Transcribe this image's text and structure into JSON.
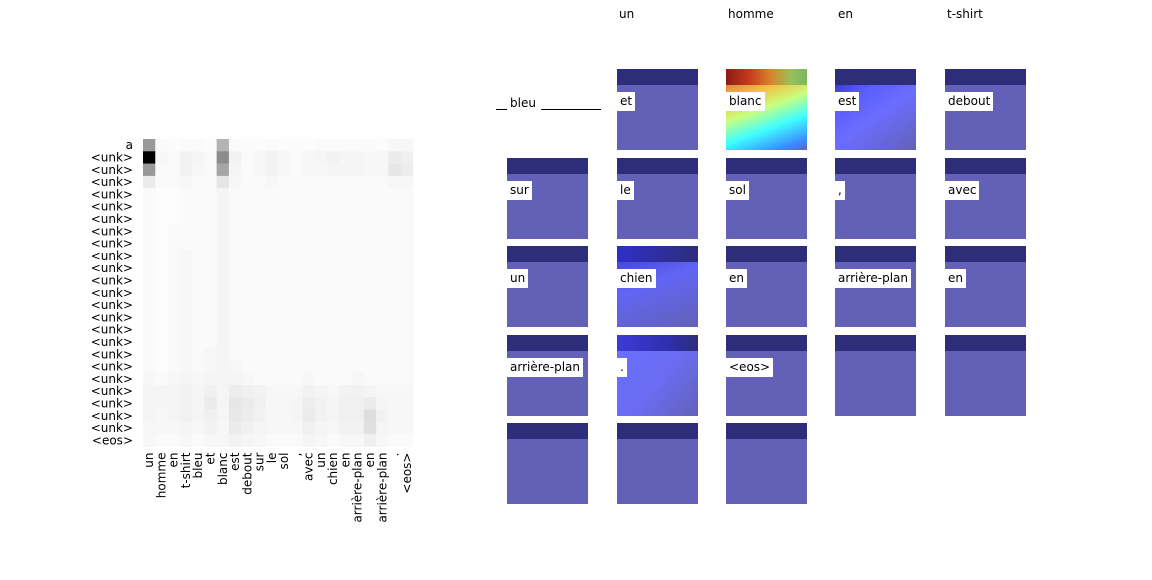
{
  "chart_data": [
    {
      "type": "heatmap",
      "y_labels": [
        "a",
        "<unk>",
        "<unk>",
        "<unk>",
        "<unk>",
        "<unk>",
        "<unk>",
        "<unk>",
        "<unk>",
        "<unk>",
        "<unk>",
        "<unk>",
        "<unk>",
        "<unk>",
        "<unk>",
        "<unk>",
        "<unk>",
        "<unk>",
        "<unk>",
        "<unk>",
        "<unk>",
        "<unk>",
        "<unk>",
        "<unk>",
        "<eos>"
      ],
      "x_labels": [
        "un",
        "homme",
        "en",
        "t-shirt",
        "bleu",
        "et",
        "blanc",
        "est",
        "debout",
        "sur",
        "le",
        "sol",
        ",",
        "avec",
        "un",
        "chien",
        "en",
        "arrière-plan",
        "en",
        "arrière-plan",
        ".",
        "<eos>"
      ],
      "values": [
        [
          0.4,
          0.02,
          0.01,
          0.02,
          0.02,
          0.01,
          0.3,
          0.02,
          0.01,
          0.01,
          0.02,
          0.01,
          0.01,
          0.01,
          0.02,
          0.02,
          0.02,
          0.02,
          0.02,
          0.01,
          0.03,
          0.03
        ],
        [
          1.0,
          0.03,
          0.02,
          0.05,
          0.04,
          0.02,
          0.45,
          0.05,
          0.02,
          0.03,
          0.05,
          0.03,
          0.02,
          0.03,
          0.04,
          0.05,
          0.04,
          0.04,
          0.03,
          0.03,
          0.08,
          0.06
        ],
        [
          0.4,
          0.02,
          0.02,
          0.05,
          0.03,
          0.02,
          0.35,
          0.04,
          0.02,
          0.03,
          0.05,
          0.03,
          0.02,
          0.03,
          0.03,
          0.04,
          0.04,
          0.04,
          0.03,
          0.03,
          0.1,
          0.07
        ],
        [
          0.08,
          0.02,
          0.02,
          0.03,
          0.02,
          0.02,
          0.1,
          0.03,
          0.02,
          0.02,
          0.03,
          0.02,
          0.02,
          0.02,
          0.02,
          0.02,
          0.02,
          0.02,
          0.02,
          0.02,
          0.03,
          0.03
        ],
        [
          0.02,
          0.01,
          0.01,
          0.02,
          0.02,
          0.02,
          0.04,
          0.02,
          0.02,
          0.02,
          0.02,
          0.02,
          0.02,
          0.02,
          0.02,
          0.02,
          0.02,
          0.02,
          0.02,
          0.02,
          0.02,
          0.02
        ],
        [
          0.02,
          0.01,
          0.01,
          0.02,
          0.02,
          0.02,
          0.04,
          0.02,
          0.02,
          0.02,
          0.02,
          0.02,
          0.02,
          0.02,
          0.02,
          0.02,
          0.02,
          0.02,
          0.02,
          0.02,
          0.02,
          0.02
        ],
        [
          0.02,
          0.01,
          0.01,
          0.02,
          0.02,
          0.02,
          0.04,
          0.02,
          0.02,
          0.02,
          0.02,
          0.02,
          0.02,
          0.02,
          0.02,
          0.02,
          0.02,
          0.02,
          0.02,
          0.02,
          0.02,
          0.02
        ],
        [
          0.02,
          0.01,
          0.02,
          0.02,
          0.02,
          0.02,
          0.04,
          0.02,
          0.02,
          0.02,
          0.02,
          0.02,
          0.02,
          0.02,
          0.02,
          0.02,
          0.02,
          0.02,
          0.02,
          0.02,
          0.02,
          0.02
        ],
        [
          0.02,
          0.01,
          0.02,
          0.02,
          0.02,
          0.02,
          0.04,
          0.02,
          0.02,
          0.02,
          0.02,
          0.02,
          0.02,
          0.02,
          0.02,
          0.02,
          0.02,
          0.02,
          0.02,
          0.02,
          0.02,
          0.02
        ],
        [
          0.02,
          0.01,
          0.02,
          0.03,
          0.02,
          0.02,
          0.04,
          0.02,
          0.02,
          0.02,
          0.02,
          0.02,
          0.02,
          0.02,
          0.02,
          0.02,
          0.02,
          0.02,
          0.02,
          0.02,
          0.02,
          0.02
        ],
        [
          0.02,
          0.01,
          0.02,
          0.03,
          0.02,
          0.02,
          0.04,
          0.02,
          0.02,
          0.02,
          0.02,
          0.02,
          0.02,
          0.02,
          0.02,
          0.02,
          0.02,
          0.02,
          0.02,
          0.02,
          0.02,
          0.02
        ],
        [
          0.02,
          0.01,
          0.02,
          0.03,
          0.02,
          0.02,
          0.04,
          0.02,
          0.02,
          0.02,
          0.02,
          0.02,
          0.02,
          0.02,
          0.02,
          0.02,
          0.02,
          0.02,
          0.02,
          0.02,
          0.02,
          0.02
        ],
        [
          0.02,
          0.01,
          0.02,
          0.03,
          0.02,
          0.02,
          0.04,
          0.02,
          0.02,
          0.02,
          0.02,
          0.02,
          0.02,
          0.02,
          0.02,
          0.02,
          0.02,
          0.02,
          0.02,
          0.02,
          0.02,
          0.02
        ],
        [
          0.02,
          0.01,
          0.02,
          0.03,
          0.02,
          0.02,
          0.04,
          0.02,
          0.02,
          0.02,
          0.02,
          0.02,
          0.02,
          0.02,
          0.02,
          0.02,
          0.02,
          0.02,
          0.02,
          0.02,
          0.02,
          0.02
        ],
        [
          0.02,
          0.01,
          0.02,
          0.03,
          0.02,
          0.02,
          0.04,
          0.02,
          0.02,
          0.02,
          0.02,
          0.02,
          0.02,
          0.02,
          0.02,
          0.02,
          0.02,
          0.02,
          0.02,
          0.02,
          0.02,
          0.02
        ],
        [
          0.02,
          0.01,
          0.02,
          0.03,
          0.02,
          0.02,
          0.04,
          0.02,
          0.02,
          0.02,
          0.02,
          0.02,
          0.02,
          0.02,
          0.02,
          0.02,
          0.02,
          0.02,
          0.02,
          0.02,
          0.02,
          0.02
        ],
        [
          0.02,
          0.01,
          0.02,
          0.03,
          0.02,
          0.02,
          0.04,
          0.02,
          0.02,
          0.02,
          0.02,
          0.02,
          0.02,
          0.02,
          0.02,
          0.02,
          0.02,
          0.02,
          0.02,
          0.02,
          0.02,
          0.02
        ],
        [
          0.02,
          0.01,
          0.02,
          0.03,
          0.02,
          0.03,
          0.04,
          0.02,
          0.02,
          0.02,
          0.02,
          0.02,
          0.02,
          0.02,
          0.02,
          0.02,
          0.02,
          0.02,
          0.02,
          0.02,
          0.02,
          0.02
        ],
        [
          0.02,
          0.01,
          0.02,
          0.03,
          0.02,
          0.03,
          0.04,
          0.03,
          0.02,
          0.02,
          0.02,
          0.02,
          0.02,
          0.02,
          0.02,
          0.02,
          0.02,
          0.02,
          0.02,
          0.02,
          0.02,
          0.02
        ],
        [
          0.03,
          0.02,
          0.03,
          0.04,
          0.03,
          0.04,
          0.04,
          0.04,
          0.03,
          0.02,
          0.02,
          0.02,
          0.02,
          0.03,
          0.02,
          0.02,
          0.02,
          0.03,
          0.02,
          0.02,
          0.02,
          0.02
        ],
        [
          0.04,
          0.04,
          0.04,
          0.05,
          0.04,
          0.06,
          0.04,
          0.07,
          0.06,
          0.05,
          0.03,
          0.03,
          0.03,
          0.05,
          0.04,
          0.03,
          0.05,
          0.05,
          0.04,
          0.03,
          0.03,
          0.03
        ],
        [
          0.04,
          0.04,
          0.04,
          0.05,
          0.04,
          0.08,
          0.04,
          0.1,
          0.08,
          0.06,
          0.03,
          0.03,
          0.04,
          0.07,
          0.05,
          0.04,
          0.06,
          0.06,
          0.08,
          0.04,
          0.03,
          0.03
        ],
        [
          0.04,
          0.03,
          0.04,
          0.05,
          0.04,
          0.06,
          0.04,
          0.09,
          0.07,
          0.05,
          0.03,
          0.03,
          0.04,
          0.08,
          0.05,
          0.04,
          0.06,
          0.06,
          0.13,
          0.05,
          0.03,
          0.03
        ],
        [
          0.03,
          0.03,
          0.03,
          0.04,
          0.03,
          0.05,
          0.03,
          0.08,
          0.06,
          0.04,
          0.03,
          0.03,
          0.03,
          0.06,
          0.04,
          0.03,
          0.05,
          0.05,
          0.12,
          0.04,
          0.03,
          0.03
        ],
        [
          0.03,
          0.02,
          0.02,
          0.03,
          0.02,
          0.03,
          0.03,
          0.05,
          0.04,
          0.03,
          0.02,
          0.02,
          0.02,
          0.04,
          0.03,
          0.02,
          0.03,
          0.03,
          0.06,
          0.03,
          0.02,
          0.02
        ]
      ],
      "colormap": "Greys"
    },
    {
      "type": "attention-tiles",
      "column_headers": [
        "un",
        "homme",
        "en",
        "t-shirt"
      ],
      "ghost_tile_label": "bleu",
      "tiles": [
        {
          "label": "et",
          "style": "plain"
        },
        {
          "label": "blanc",
          "style": "hot"
        },
        {
          "label": "est",
          "style": "glow-d"
        },
        {
          "label": "debout",
          "style": "plain"
        },
        {
          "label": "sur",
          "style": "plain"
        },
        {
          "label": "le",
          "style": "plain"
        },
        {
          "label": "sol",
          "style": "plain"
        },
        {
          "label": ",",
          "style": "plain"
        },
        {
          "label": "avec",
          "style": "plain"
        },
        {
          "label": "un",
          "style": "plain"
        },
        {
          "label": "chien",
          "style": "glow-c"
        },
        {
          "label": "en",
          "style": "plain"
        },
        {
          "label": "arrière-plan",
          "style": "plain"
        },
        {
          "label": "en",
          "style": "plain"
        },
        {
          "label": "arrière-plan",
          "style": "plain"
        },
        {
          "label": ".",
          "style": "glow-e"
        },
        {
          "label": "<eos>",
          "style": "plain"
        },
        {
          "label": "",
          "style": "plain"
        },
        {
          "label": "",
          "style": "plain"
        },
        {
          "label": "",
          "style": "plain"
        },
        {
          "label": "",
          "style": "plain"
        },
        {
          "label": "",
          "style": "plain"
        }
      ]
    }
  ]
}
